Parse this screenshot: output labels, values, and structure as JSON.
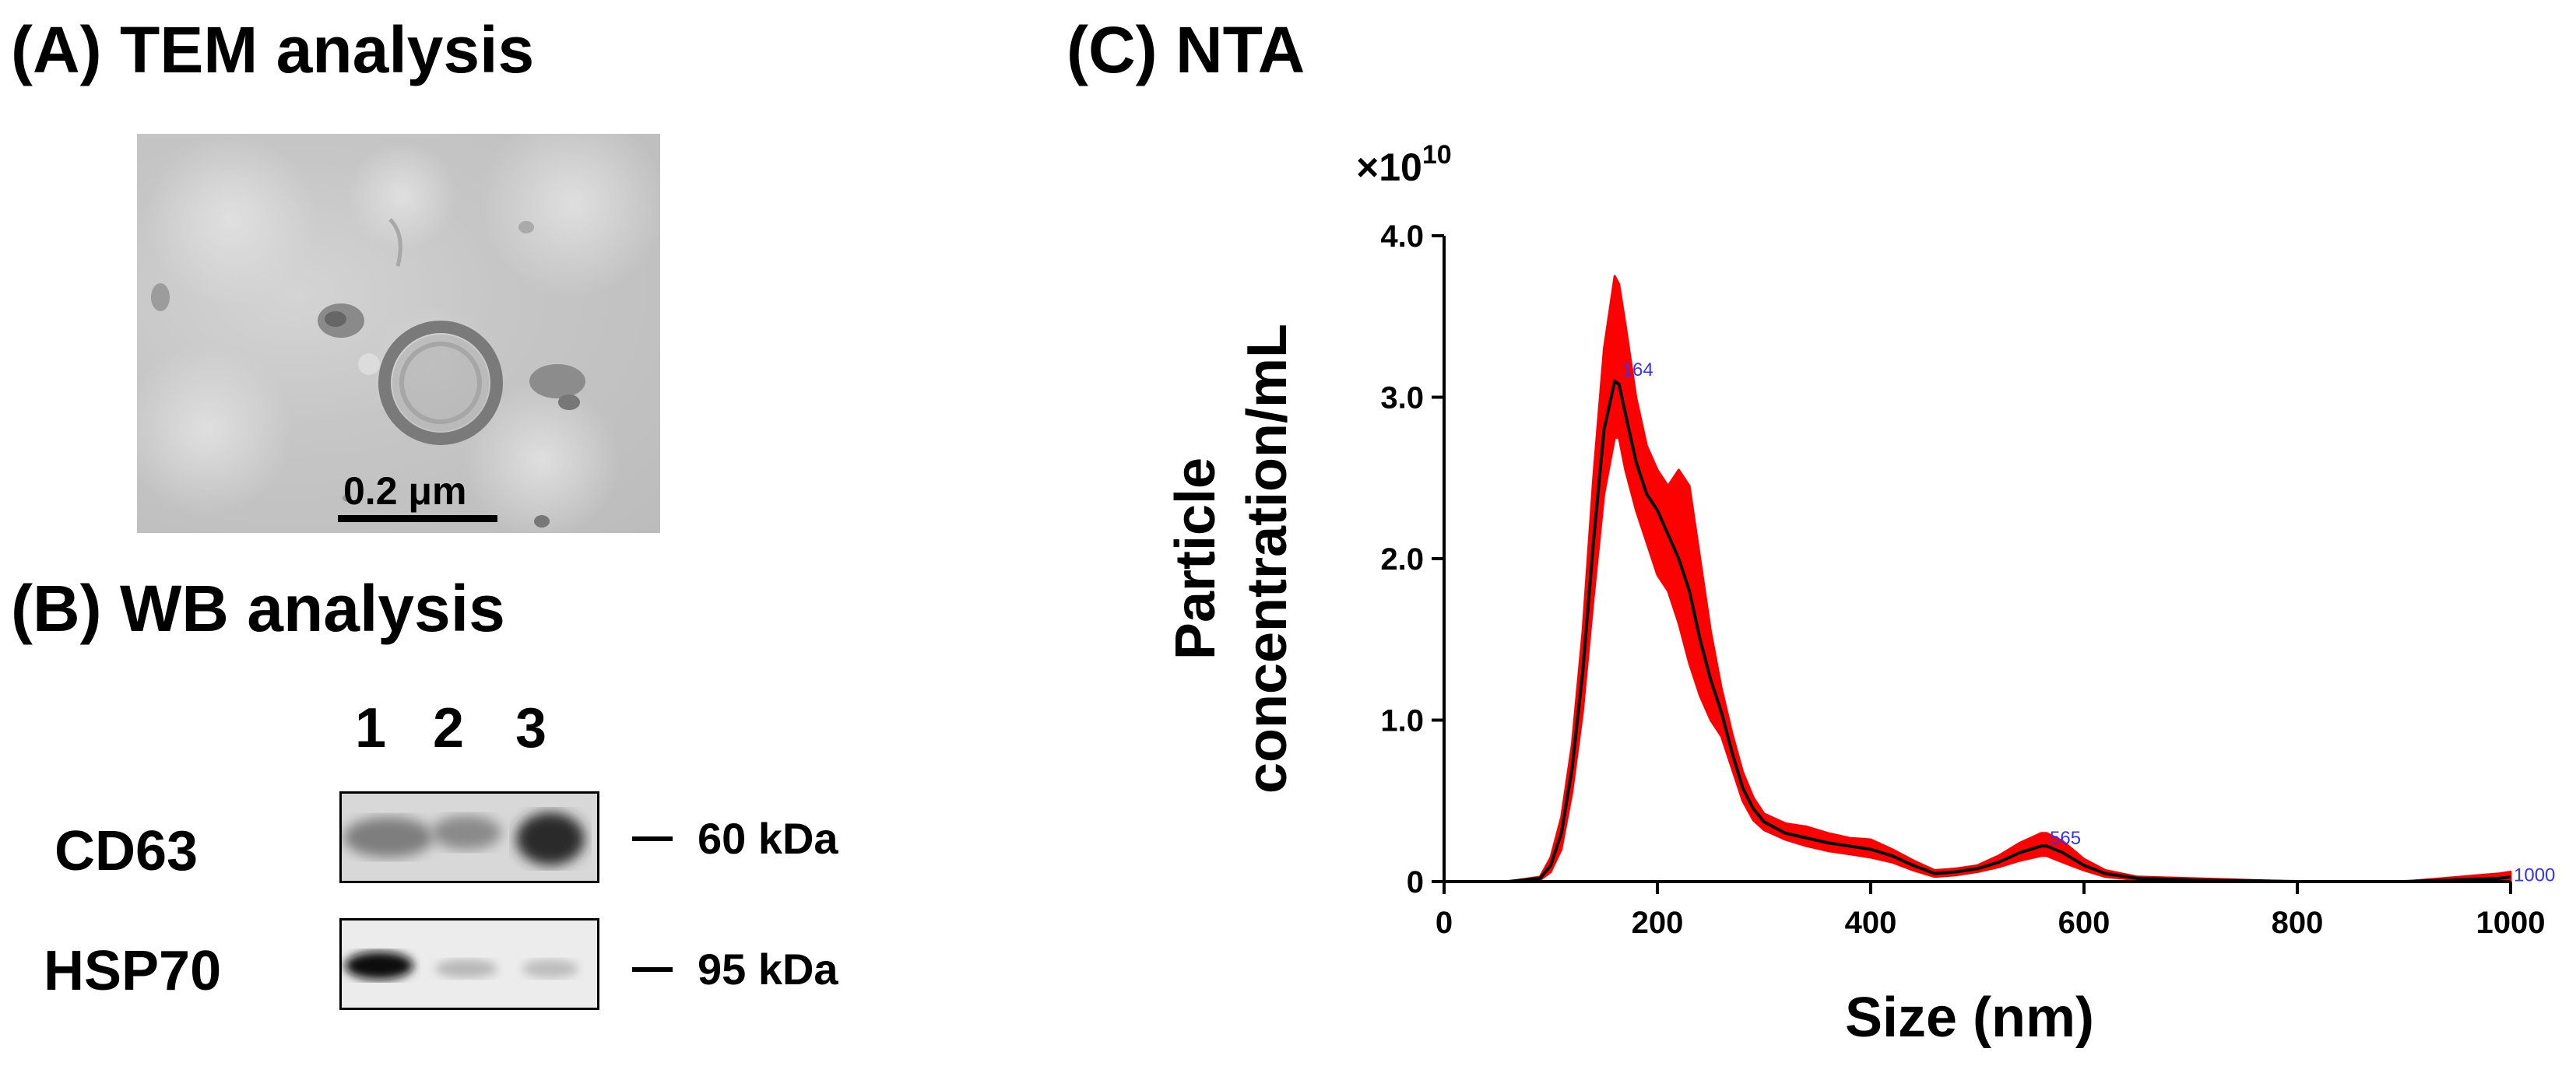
{
  "panels": {
    "a": {
      "title": "(A) TEM analysis",
      "scale_label": "0.2 μm"
    },
    "b": {
      "title": "(B) WB analysis",
      "lanes": [
        "1",
        "2",
        "3"
      ],
      "proteins": [
        {
          "name": "CD63",
          "marker": "60 kDa"
        },
        {
          "name": "HSP70",
          "marker": "95 kDa"
        }
      ]
    },
    "c": {
      "title": "(C) NTA"
    }
  },
  "colors": {
    "band_fill": "#ff0000",
    "mean_line": "#000000",
    "peak_label": "#3333ff"
  },
  "chart_data": {
    "type": "line",
    "title": "(C) NTA",
    "xlabel": "Size (nm)",
    "ylabel_lines": [
      "Particle",
      "concentration/mL"
    ],
    "multiplier": "×10",
    "multiplier_exp": "10",
    "xlim": [
      0,
      1000
    ],
    "ylim": [
      0,
      4.0
    ],
    "x_ticks": [
      0,
      200,
      400,
      600,
      800,
      1000
    ],
    "x_tick_labels": [
      "0",
      "200",
      "400",
      "600",
      "800",
      "1000"
    ],
    "y_ticks": [
      0,
      1.0,
      2.0,
      3.0,
      4.0
    ],
    "y_tick_labels": [
      "0",
      "1.0",
      "2.0",
      "3.0",
      "4.0"
    ],
    "series": [
      {
        "name": "mean",
        "x": [
          60,
          90,
          100,
          110,
          120,
          130,
          140,
          150,
          160,
          164,
          170,
          180,
          190,
          200,
          210,
          220,
          230,
          240,
          250,
          260,
          270,
          280,
          290,
          300,
          320,
          340,
          360,
          380,
          400,
          420,
          440,
          460,
          480,
          500,
          520,
          540,
          560,
          565,
          580,
          600,
          620,
          650,
          700,
          800,
          900,
          990,
          1000
        ],
        "y": [
          0,
          0.02,
          0.1,
          0.3,
          0.7,
          1.3,
          2.1,
          2.8,
          3.1,
          3.08,
          2.9,
          2.6,
          2.4,
          2.3,
          2.15,
          2.0,
          1.8,
          1.5,
          1.25,
          1.05,
          0.8,
          0.58,
          0.45,
          0.37,
          0.3,
          0.27,
          0.24,
          0.22,
          0.2,
          0.16,
          0.1,
          0.05,
          0.06,
          0.08,
          0.12,
          0.18,
          0.22,
          0.22,
          0.18,
          0.1,
          0.05,
          0.02,
          0.01,
          0.0,
          0.0,
          0.02,
          0.03
        ]
      },
      {
        "name": "upper",
        "x": [
          60,
          90,
          100,
          110,
          120,
          130,
          140,
          150,
          160,
          164,
          170,
          180,
          190,
          200,
          210,
          220,
          230,
          240,
          250,
          260,
          270,
          280,
          290,
          300,
          320,
          340,
          360,
          380,
          400,
          420,
          440,
          460,
          480,
          500,
          520,
          540,
          560,
          565,
          580,
          600,
          620,
          650,
          700,
          800,
          900,
          990,
          1000
        ],
        "y": [
          0,
          0.03,
          0.15,
          0.4,
          0.85,
          1.55,
          2.5,
          3.3,
          3.75,
          3.7,
          3.45,
          3.0,
          2.7,
          2.55,
          2.45,
          2.55,
          2.45,
          2.0,
          1.55,
          1.2,
          0.92,
          0.68,
          0.52,
          0.42,
          0.36,
          0.34,
          0.3,
          0.27,
          0.26,
          0.2,
          0.13,
          0.07,
          0.08,
          0.1,
          0.16,
          0.24,
          0.3,
          0.3,
          0.25,
          0.14,
          0.07,
          0.03,
          0.02,
          0.0,
          0.0,
          0.05,
          0.06
        ]
      },
      {
        "name": "lower",
        "x": [
          60,
          90,
          100,
          110,
          120,
          130,
          140,
          150,
          160,
          164,
          170,
          180,
          190,
          200,
          210,
          220,
          230,
          240,
          250,
          260,
          270,
          280,
          290,
          300,
          320,
          340,
          360,
          380,
          400,
          420,
          440,
          460,
          480,
          500,
          520,
          540,
          560,
          565,
          580,
          600,
          620,
          650,
          700,
          800,
          900,
          990,
          1000
        ],
        "y": [
          0,
          0.01,
          0.06,
          0.2,
          0.55,
          1.05,
          1.75,
          2.4,
          2.75,
          2.75,
          2.55,
          2.3,
          2.1,
          1.9,
          1.8,
          1.6,
          1.35,
          1.15,
          1.0,
          0.9,
          0.7,
          0.5,
          0.38,
          0.32,
          0.26,
          0.22,
          0.19,
          0.17,
          0.15,
          0.12,
          0.07,
          0.03,
          0.04,
          0.06,
          0.09,
          0.13,
          0.16,
          0.16,
          0.12,
          0.07,
          0.03,
          0.01,
          0.0,
          0.0,
          0.0,
          0.0,
          0.0
        ]
      }
    ],
    "peak_labels": [
      {
        "x": 164,
        "y": 3.18,
        "text": "164"
      },
      {
        "x": 565,
        "y": 0.28,
        "text": "565"
      },
      {
        "x": 1000,
        "y": 0.05,
        "text": "1000"
      }
    ]
  }
}
